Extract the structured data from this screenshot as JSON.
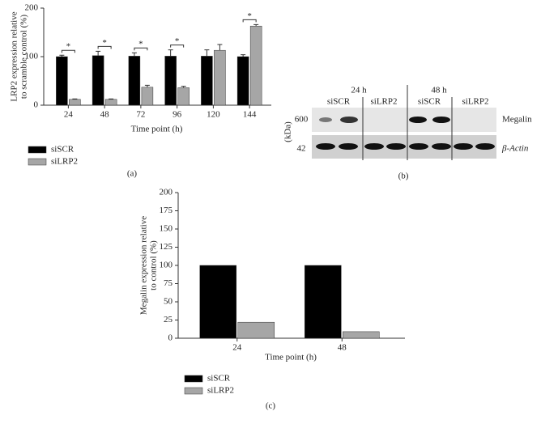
{
  "chart_data": [
    {
      "type": "bar",
      "panel": "(a)",
      "y_label": [
        "LRP2 expression relative",
        "to scramble control (%)"
      ],
      "x_label": "Time point (h)",
      "categories": [
        "24",
        "48",
        "72",
        "96",
        "120",
        "144"
      ],
      "series": [
        {
          "name": "siSCR",
          "color": "#000000",
          "values": [
            100,
            102,
            101,
            101,
            101,
            100
          ],
          "errors": [
            3,
            9,
            7,
            13,
            13,
            4
          ]
        },
        {
          "name": "siLRP2",
          "color": "#a6a6a6",
          "values": [
            12,
            12,
            37,
            36,
            113,
            163
          ],
          "errors": [
            1,
            1,
            4,
            3,
            12,
            3
          ]
        }
      ],
      "annotations": [
        {
          "text": "*",
          "category": "24"
        },
        {
          "text": "*",
          "category": "48"
        },
        {
          "text": "*",
          "category": "72"
        },
        {
          "text": "*",
          "category": "96"
        },
        {
          "text": "*",
          "category": "144"
        }
      ],
      "ylim": [
        0,
        200
      ],
      "yticks": [
        0,
        100,
        200
      ]
    },
    {
      "type": "bar",
      "panel": "(c)",
      "y_label": [
        "Megalin expression relative",
        "to control (%)"
      ],
      "x_label": "Time point (h)",
      "categories": [
        "24",
        "48"
      ],
      "series": [
        {
          "name": "siSCR",
          "color": "#000000",
          "values": [
            100,
            100
          ]
        },
        {
          "name": "siLRP2",
          "color": "#a6a6a6",
          "values": [
            22,
            9
          ]
        }
      ],
      "ylim": [
        0,
        200
      ],
      "yticks": [
        0,
        25,
        50,
        75,
        100,
        125,
        150,
        175,
        200
      ]
    }
  ],
  "blot": {
    "panel": "(b)",
    "unit": "(kDa)",
    "times": [
      "24 h",
      "48 h"
    ],
    "lanes": [
      "siSCR",
      "siLRP2",
      "siSCR",
      "siLRP2"
    ],
    "markers": [
      "600",
      "42"
    ],
    "proteins": [
      "Megalin",
      "β-Actin"
    ]
  }
}
